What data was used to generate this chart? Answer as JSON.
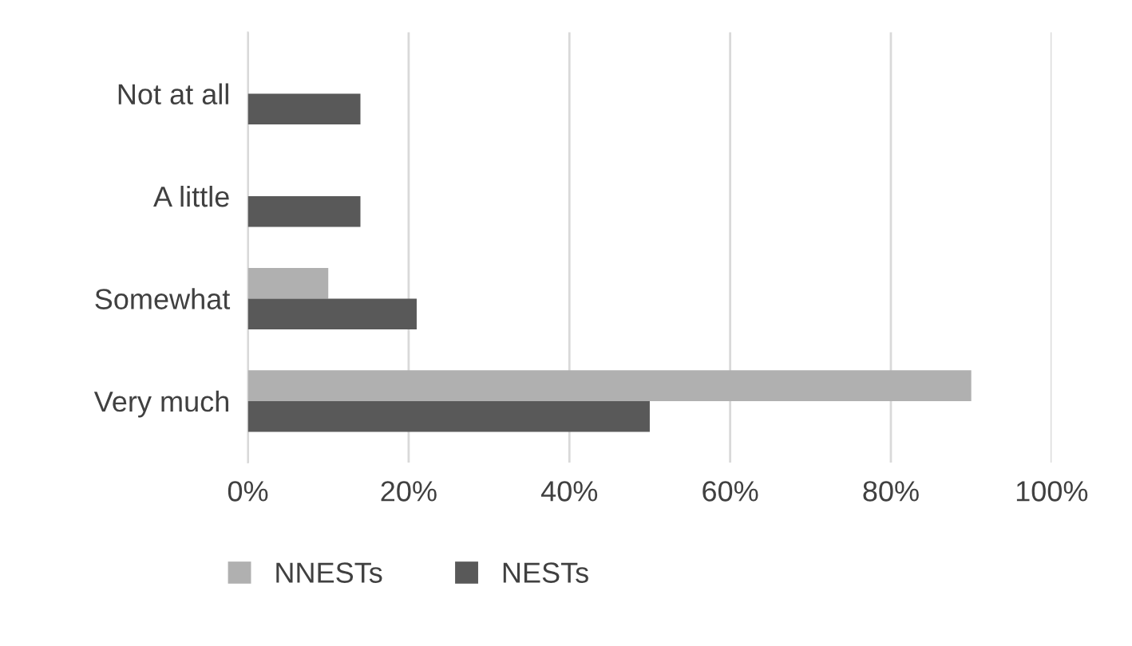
{
  "chart_data": {
    "type": "bar",
    "orientation": "horizontal",
    "categories": [
      "Not at all",
      "A little",
      "Somewhat",
      "Very much"
    ],
    "series": [
      {
        "name": "NNESTs",
        "color": "#b0b0b0",
        "values": [
          0,
          0,
          10,
          90
        ]
      },
      {
        "name": "NESTs",
        "color": "#595959",
        "values": [
          14,
          14,
          21,
          50
        ]
      }
    ],
    "xlim": [
      0,
      100
    ],
    "xticks": [
      {
        "value": 0,
        "label": "0%"
      },
      {
        "value": 20,
        "label": "20%"
      },
      {
        "value": 40,
        "label": "40%"
      },
      {
        "value": 60,
        "label": "60%"
      },
      {
        "value": 80,
        "label": "80%"
      },
      {
        "value": 100,
        "label": "100%"
      }
    ],
    "grid": "x",
    "legend": "bottom"
  }
}
